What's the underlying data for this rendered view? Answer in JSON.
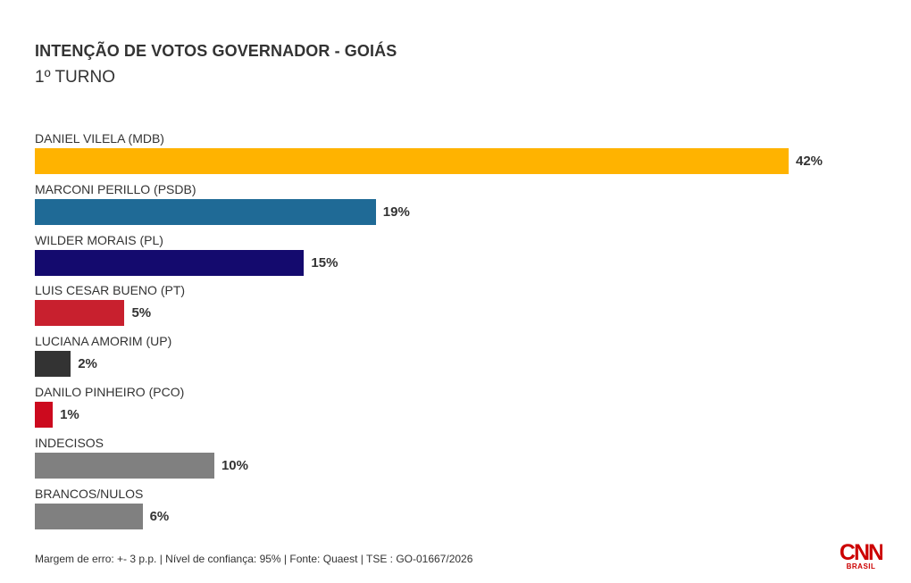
{
  "chart_data": {
    "type": "bar",
    "orientation": "horizontal",
    "title": "INTENÇÃO DE VOTOS GOVERNADOR - GOIÁS",
    "subtitle": "1º TURNO",
    "categories": [
      "DANIEL VILELA (MDB)",
      "MARCONI PERILLO (PSDB)",
      "WILDER MORAIS (PL)",
      "LUIS CESAR BUENO (PT)",
      "LUCIANA AMORIM (UP)",
      "DANILO PINHEIRO (PCO)",
      "INDECISOS",
      "BRANCOS/NULOS"
    ],
    "values": [
      42,
      19,
      15,
      5,
      2,
      1,
      10,
      6
    ],
    "value_labels": [
      "42%",
      "19%",
      "15%",
      "5%",
      "2%",
      "1%",
      "10%",
      "6%"
    ],
    "colors": [
      "#FFB300",
      "#1F6A96",
      "#140A6E",
      "#C8202E",
      "#333333",
      "#CC0A1E",
      "#808080",
      "#808080"
    ],
    "unit": "%",
    "xlim": [
      0,
      42
    ],
    "grid": false,
    "legend": "none"
  },
  "footer": {
    "note": "Margem de erro: +- 3 p.p. | Nível de confiança: 95% | Fonte: Quaest | TSE : GO-01667/2026"
  },
  "logo": {
    "name": "cnn-logo",
    "text": "CNN",
    "subtext": "BRASIL",
    "color": "#CC0000"
  }
}
